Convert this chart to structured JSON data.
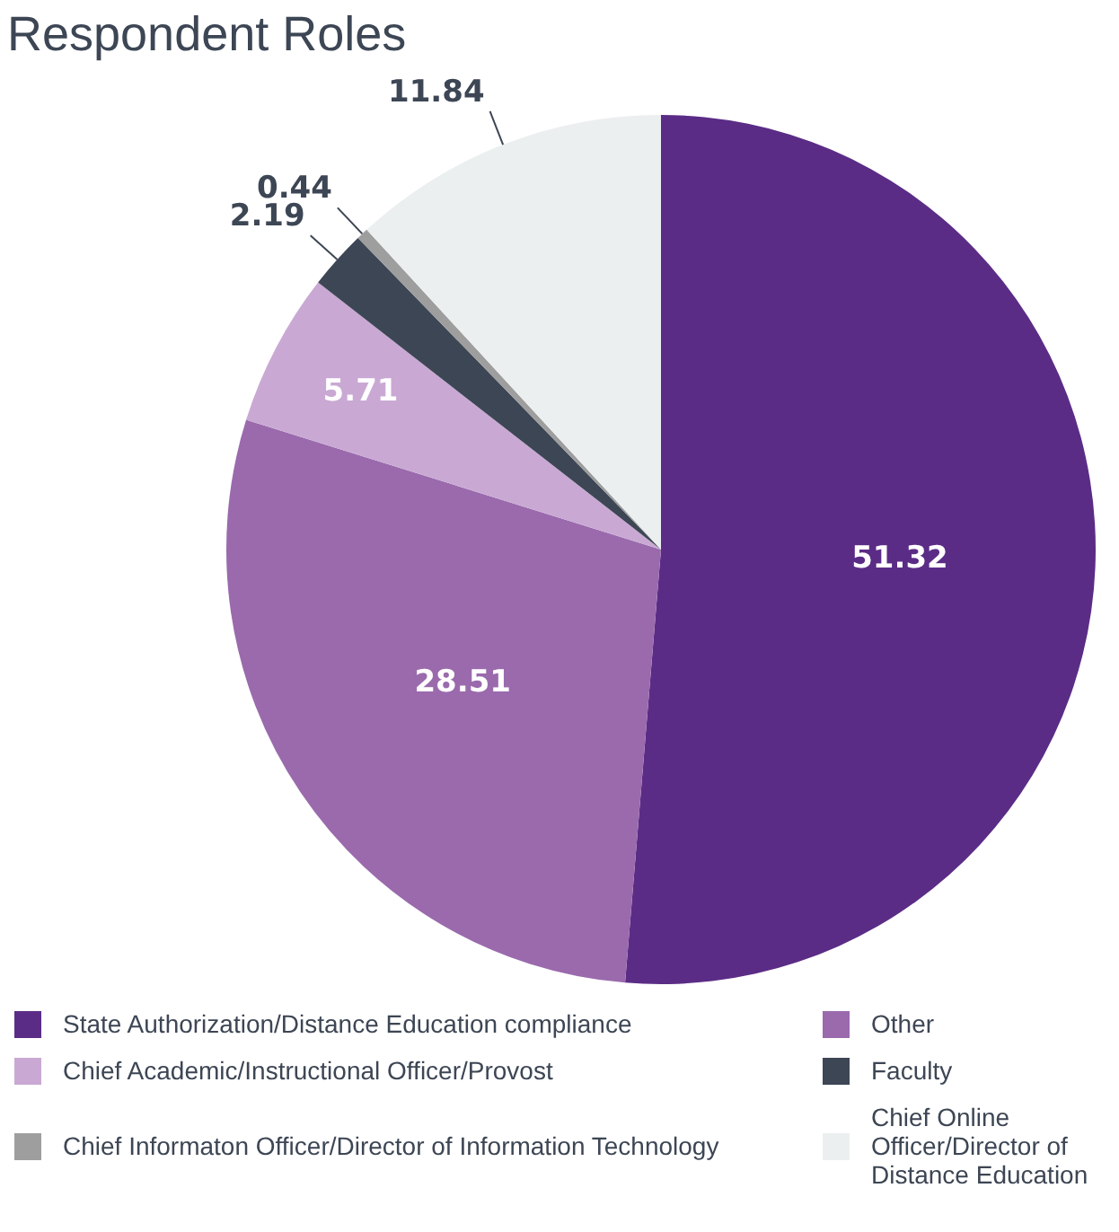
{
  "chart_data": {
    "type": "pie",
    "title": "Respondent Roles",
    "categories": [
      "State Authorization/Distance Education compliance",
      "Other",
      "Chief Academic/Instructional Officer/Provost",
      "Faculty",
      "Chief Informaton Officer/Director of Information Technology",
      "Chief Online Officer/Director of Distance Education"
    ],
    "values": [
      51.32,
      28.51,
      5.71,
      2.19,
      0.44,
      11.84
    ],
    "colors": [
      "#5b2c86",
      "#9a6aad",
      "#c9a9d3",
      "#3d4654",
      "#9e9e9e",
      "#eceff0"
    ],
    "data_labels": true,
    "legend": "bottom"
  }
}
